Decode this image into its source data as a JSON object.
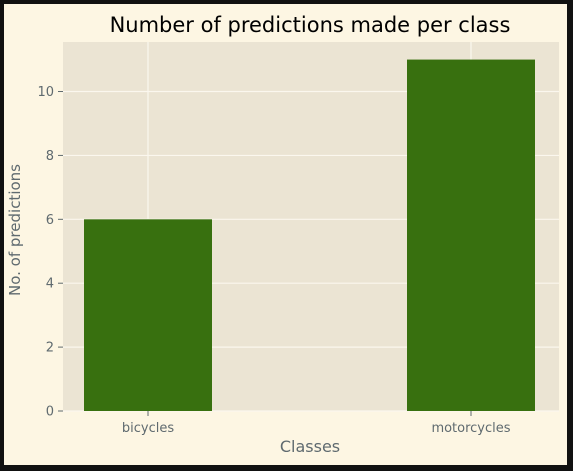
{
  "chart_data": {
    "type": "bar",
    "title": "Number of predictions made per class",
    "xlabel": "Classes",
    "ylabel": "No. of predictions",
    "categories": [
      "bicycles",
      "motorcycles"
    ],
    "values": [
      6,
      11
    ],
    "ylim": [
      0,
      11.55
    ],
    "yticks": [
      0,
      2,
      4,
      6,
      8,
      10
    ],
    "grid": true,
    "colors": {
      "bar": "#38700f",
      "plot_background": "#ebe4d3",
      "figure_background": "#fdf6e3",
      "grid": "#fbf7ee",
      "tick_text": "#5f6a6f",
      "label_text": "#5f6a6f",
      "title_text": "#000000"
    }
  }
}
